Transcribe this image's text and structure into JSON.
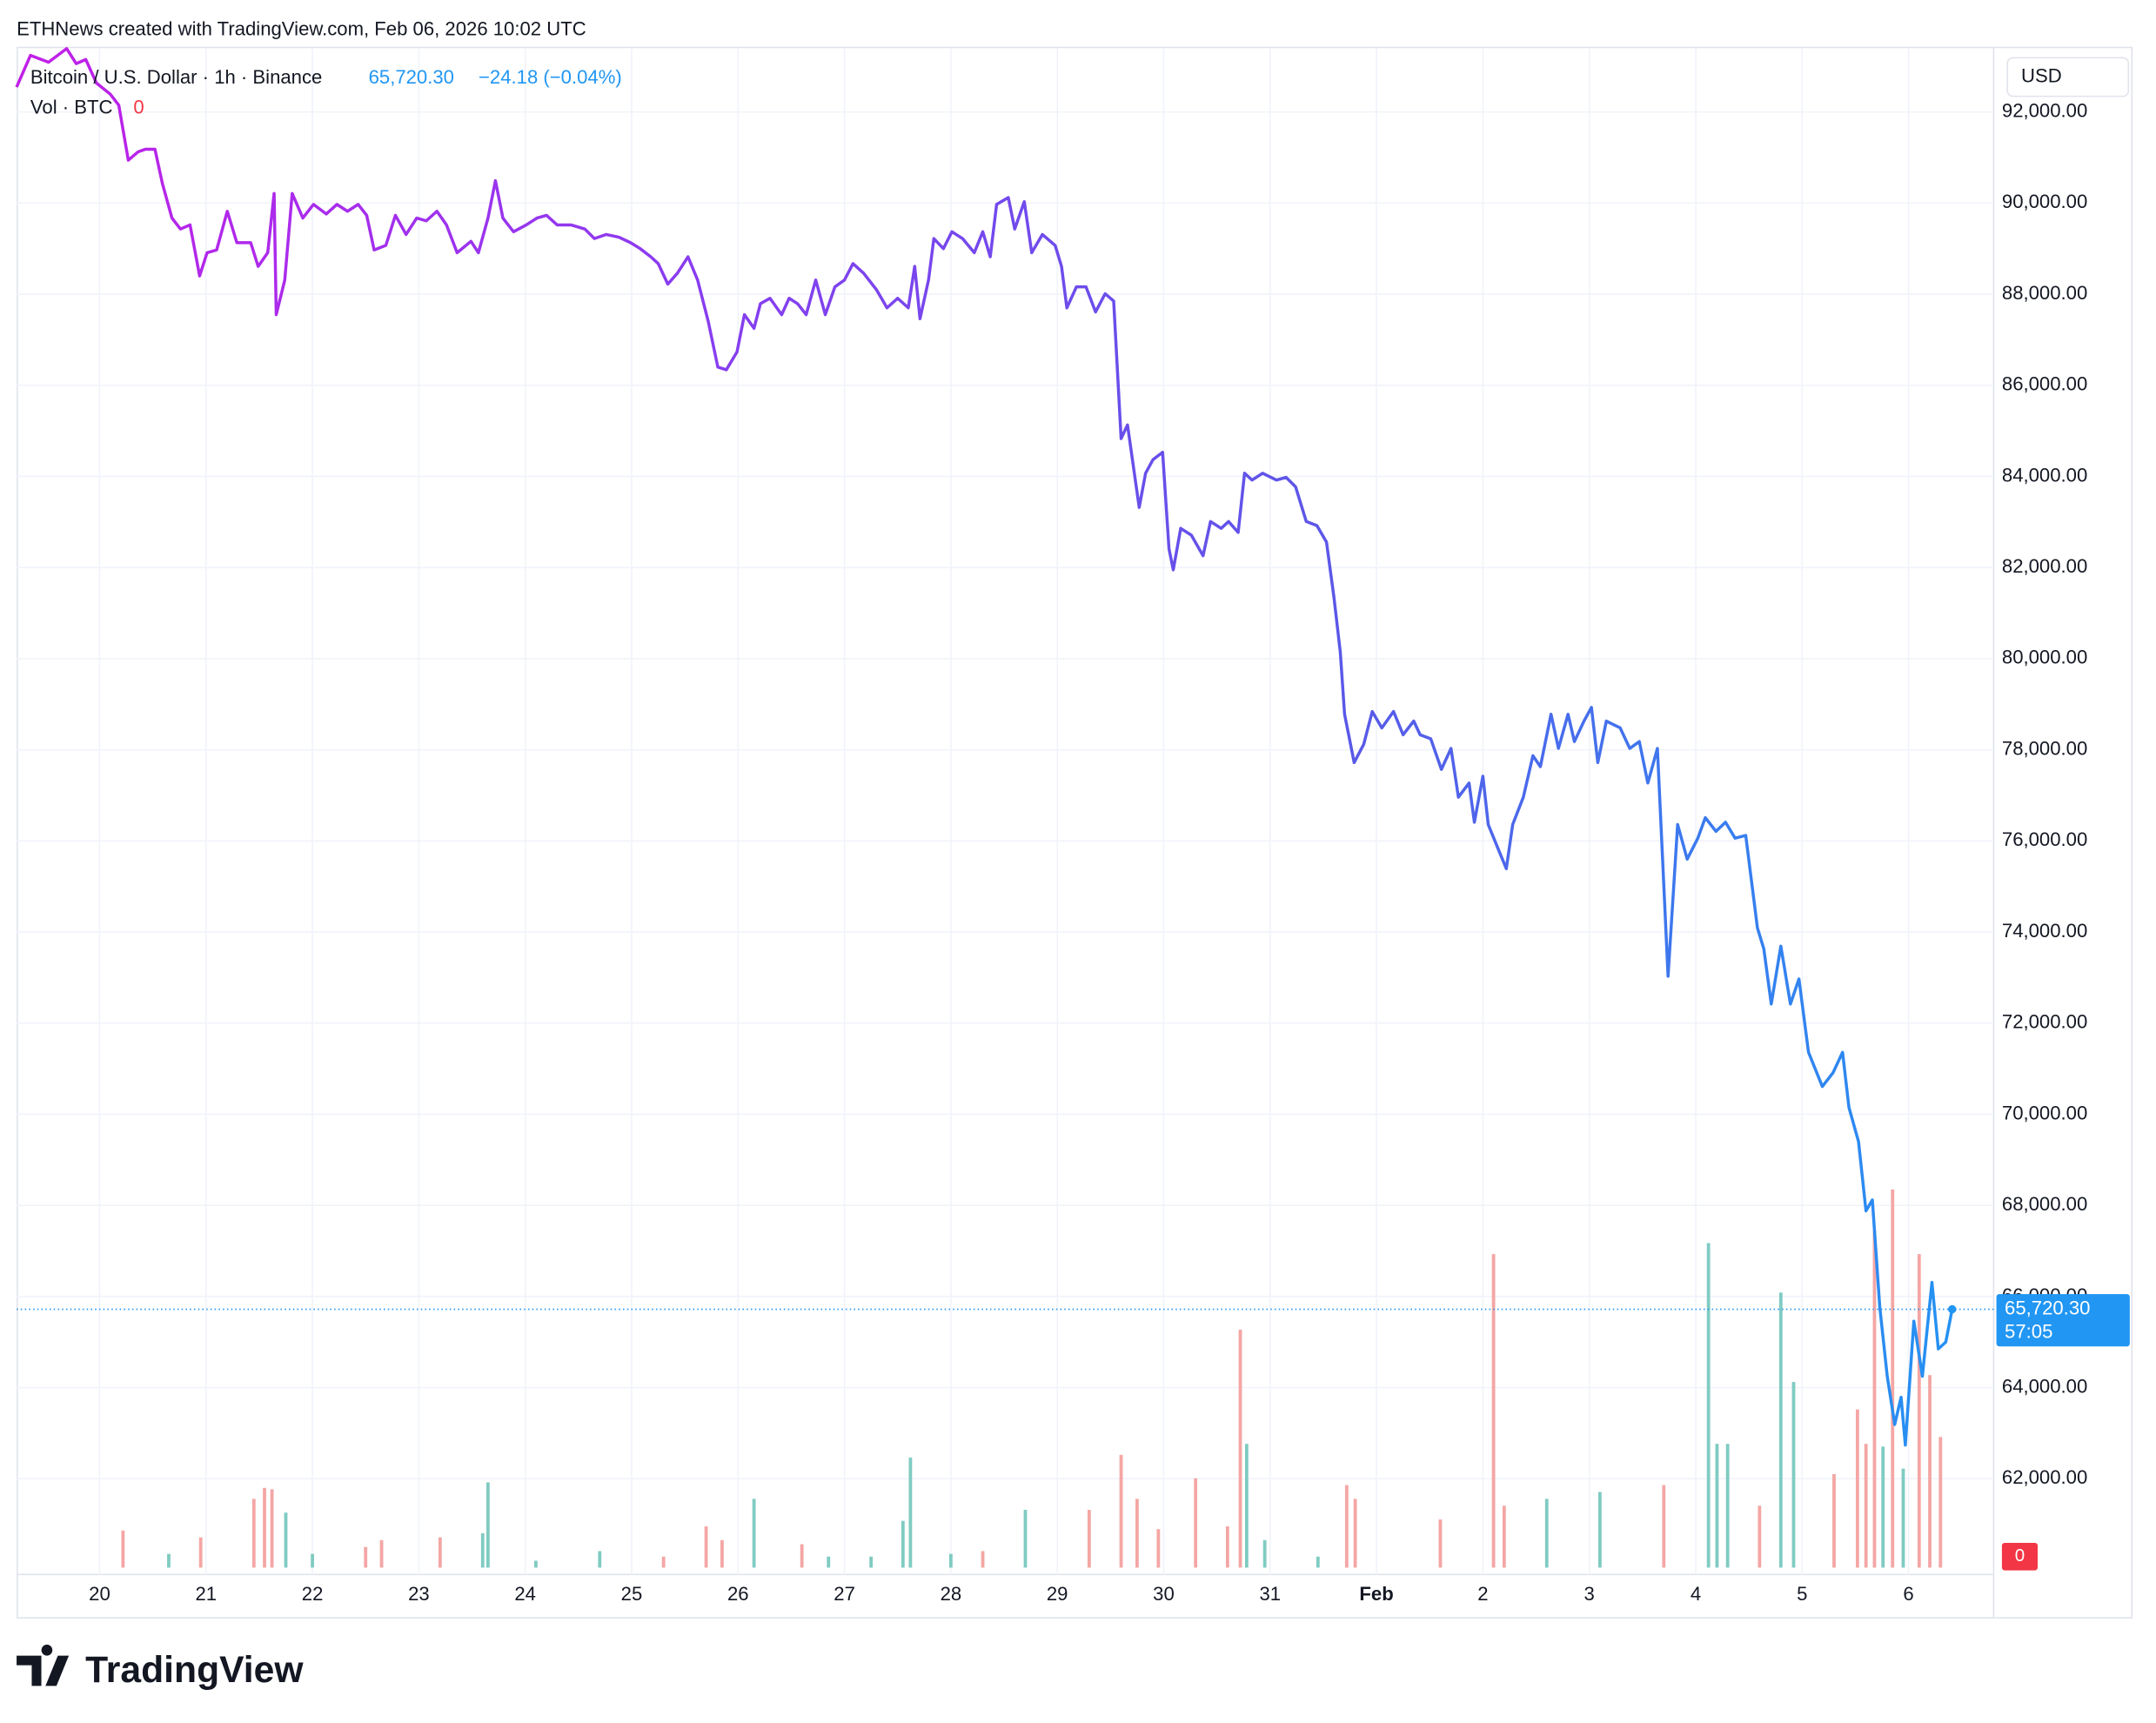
{
  "header": "ETHNews created with TradingView.com, Feb 06, 2026 10:02 UTC",
  "footer": "TradingView",
  "chart_data": {
    "type": "line",
    "title": "Bitcoin / U.S. Dollar · 1h · Binance",
    "price_label": "65,720.30",
    "change_label": "−24.18 (−0.04%)",
    "countdown": "57:05",
    "currency": "USD",
    "line_colors": [
      "#c21fe8",
      "#8a3cf0",
      "#5b57e8",
      "#2196f3"
    ],
    "grid": true,
    "xlim": [
      19.22,
      37.8
    ],
    "xticks": [
      20,
      21,
      22,
      23,
      24,
      25,
      26,
      27,
      28,
      29,
      30,
      31,
      {
        "value": 32,
        "label": "Feb"
      },
      {
        "value": 33,
        "label": "2"
      },
      {
        "value": 34,
        "label": "3"
      },
      {
        "value": 35,
        "label": "4"
      },
      {
        "value": 36,
        "label": "5"
      },
      {
        "value": 37,
        "label": "6"
      }
    ],
    "ylim": [
      60050,
      93400
    ],
    "yticks": [
      {
        "value": 62000,
        "label": "62,000.00"
      },
      {
        "value": 64000,
        "label": "64,000.00"
      },
      {
        "value": 66000,
        "label": "66,000.00"
      },
      {
        "value": 68000,
        "label": "68,000.00"
      },
      {
        "value": 70000,
        "label": "70,000.00"
      },
      {
        "value": 72000,
        "label": "72,000.00"
      },
      {
        "value": 74000,
        "label": "74,000.00"
      },
      {
        "value": 76000,
        "label": "76,000.00"
      },
      {
        "value": 78000,
        "label": "78,000.00"
      },
      {
        "value": 80000,
        "label": "80,000.00"
      },
      {
        "value": 82000,
        "label": "82,000.00"
      },
      {
        "value": 84000,
        "label": "84,000.00"
      },
      {
        "value": 86000,
        "label": "86,000.00"
      },
      {
        "value": 88000,
        "label": "88,000.00"
      },
      {
        "value": 90000,
        "label": "90,000.00"
      },
      {
        "value": 92000,
        "label": "92,000.00"
      }
    ],
    "x": [
      19.22,
      19.35,
      19.52,
      19.69,
      19.78,
      19.87,
      19.97,
      20.1,
      20.18,
      20.27,
      20.36,
      20.43,
      20.52,
      20.59,
      20.68,
      20.76,
      20.85,
      20.94,
      21.01,
      21.1,
      21.2,
      21.29,
      21.42,
      21.49,
      21.58,
      21.64,
      21.66,
      21.74,
      21.81,
      21.91,
      22.01,
      22.13,
      22.23,
      22.33,
      22.43,
      22.51,
      22.58,
      22.69,
      22.78,
      22.88,
      22.98,
      23.07,
      23.17,
      23.26,
      23.36,
      23.49,
      23.56,
      23.65,
      23.72,
      23.79,
      23.89,
      24.01,
      24.11,
      24.2,
      24.3,
      24.43,
      24.56,
      24.65,
      24.76,
      24.88,
      24.99,
      25.08,
      25.18,
      25.25,
      25.34,
      25.43,
      25.53,
      25.62,
      25.72,
      25.81,
      25.89,
      25.99,
      26.06,
      26.15,
      26.21,
      26.3,
      26.41,
      26.48,
      26.56,
      26.64,
      26.73,
      26.82,
      26.91,
      27.0,
      27.08,
      27.18,
      27.3,
      27.4,
      27.5,
      27.6,
      27.66,
      27.71,
      27.79,
      27.84,
      27.93,
      28.01,
      28.11,
      28.22,
      28.3,
      28.37,
      28.43,
      28.54,
      28.6,
      28.69,
      28.76,
      28.86,
      28.98,
      29.04,
      29.09,
      29.18,
      29.27,
      29.36,
      29.45,
      29.53,
      29.6,
      29.66,
      29.77,
      29.83,
      29.9,
      29.99,
      30.05,
      30.09,
      30.16,
      30.26,
      30.37,
      30.44,
      30.54,
      30.61,
      30.7,
      30.76,
      30.83,
      30.93,
      31.06,
      31.15,
      31.24,
      31.34,
      31.44,
      31.53,
      31.6,
      31.66,
      31.7,
      31.79,
      31.88,
      31.96,
      32.05,
      32.16,
      32.25,
      32.35,
      32.41,
      32.51,
      32.61,
      32.7,
      32.77,
      32.87,
      32.92,
      33.0,
      33.05,
      33.13,
      33.22,
      33.28,
      33.38,
      33.47,
      33.54,
      33.64,
      33.71,
      33.8,
      33.86,
      33.95,
      34.02,
      34.08,
      34.16,
      34.29,
      34.38,
      34.47,
      34.55,
      34.64,
      34.74,
      34.83,
      34.92,
      35.02,
      35.09,
      35.19,
      35.28,
      35.37,
      35.47,
      35.58,
      35.64,
      35.71,
      35.8,
      35.89,
      35.97,
      36.06,
      36.19,
      36.29,
      36.38,
      36.44,
      36.53,
      36.6,
      36.66,
      36.73,
      36.8,
      36.87,
      36.93,
      36.97,
      37.05,
      37.13,
      37.22,
      37.28,
      37.35,
      37.41
    ],
    "values": [
      92545,
      93240,
      93090,
      93390,
      93060,
      93150,
      92635,
      92390,
      92150,
      90940,
      91120,
      91180,
      91180,
      90430,
      89670,
      89430,
      89520,
      88400,
      88910,
      88970,
      89820,
      89130,
      89130,
      88610,
      88910,
      90210,
      87550,
      88310,
      90210,
      89670,
      89970,
      89760,
      89970,
      89820,
      89970,
      89730,
      88970,
      89070,
      89730,
      89310,
      89670,
      89610,
      89820,
      89520,
      88910,
      89160,
      88910,
      89670,
      90490,
      89670,
      89370,
      89520,
      89670,
      89730,
      89520,
      89520,
      89430,
      89220,
      89310,
      89250,
      89130,
      89000,
      88820,
      88670,
      88220,
      88460,
      88820,
      88310,
      87400,
      86400,
      86340,
      86730,
      87550,
      87250,
      87790,
      87910,
      87550,
      87910,
      87790,
      87550,
      88310,
      87550,
      88160,
      88310,
      88670,
      88460,
      88100,
      87700,
      87910,
      87700,
      88610,
      87460,
      88310,
      89220,
      89000,
      89370,
      89220,
      88910,
      89370,
      88820,
      89970,
      90120,
      89430,
      90030,
      88910,
      89310,
      89070,
      88610,
      87700,
      88160,
      88160,
      87610,
      88010,
      87850,
      84830,
      85130,
      83320,
      84070,
      84370,
      84530,
      82410,
      81950,
      82860,
      82710,
      82260,
      83010,
      82860,
      83010,
      82770,
      84070,
      83920,
      84070,
      83920,
      83980,
      83770,
      83010,
      82920,
      82560,
      81350,
      80140,
      78780,
      77720,
      78120,
      78840,
      78480,
      78840,
      78330,
      78630,
      78330,
      78240,
      77570,
      78030,
      76960,
      77270,
      76410,
      77420,
      76360,
      75900,
      75390,
      76360,
      76960,
      77870,
      77630,
      78780,
      78030,
      78780,
      78180,
      78630,
      78930,
      77720,
      78630,
      78480,
      78030,
      78180,
      77270,
      78030,
      73030,
      76360,
      75600,
      76060,
      76510,
      76210,
      76410,
      76060,
      76120,
      74090,
      73630,
      72420,
      73690,
      72420,
      72970,
      71360,
      70610,
      70910,
      71360,
      70150,
      69400,
      67880,
      68120,
      65760,
      64250,
      63190,
      63790,
      62740,
      65460,
      64250,
      66310,
      64850,
      65000,
      65720.3
    ],
    "volume": {
      "name": "Vol · BTC",
      "value_label": "0",
      "x": [
        20.22,
        20.65,
        20.95,
        21.45,
        21.55,
        21.62,
        21.75,
        22.0,
        22.5,
        22.65,
        23.2,
        23.6,
        23.65,
        24.1,
        24.7,
        25.3,
        25.7,
        25.85,
        26.15,
        26.6,
        26.85,
        27.25,
        27.55,
        27.62,
        28.0,
        28.3,
        28.7,
        29.3,
        29.6,
        29.75,
        29.95,
        30.3,
        30.6,
        30.72,
        30.78,
        30.95,
        31.45,
        31.72,
        31.8,
        32.6,
        33.1,
        33.2,
        33.6,
        34.1,
        34.7,
        35.12,
        35.2,
        35.3,
        35.6,
        35.8,
        35.92,
        36.3,
        36.52,
        36.6,
        36.68,
        36.76,
        36.85,
        36.95,
        37.1,
        37.2,
        37.3
      ],
      "values": [
        1080,
        400,
        880,
        2000,
        2320,
        2280,
        1600,
        400,
        600,
        800,
        880,
        1000,
        2480,
        200,
        480,
        320,
        1200,
        800,
        2000,
        680,
        320,
        320,
        1360,
        3200,
        400,
        480,
        1680,
        1680,
        3280,
        2000,
        1120,
        2600,
        1200,
        6920,
        3600,
        800,
        320,
        2400,
        2000,
        1400,
        9120,
        1800,
        2000,
        2200,
        2400,
        9440,
        3600,
        3600,
        1800,
        8000,
        5400,
        2720,
        4600,
        3600,
        9800,
        3520,
        11000,
        2880,
        9120,
        5600,
        3800
      ],
      "colors": [
        "#f4a6a4",
        "#7fcbc2",
        "#f4a6a4",
        "#f4a6a4",
        "#f4a6a4",
        "#f4a6a4",
        "#7fcbc2",
        "#7fcbc2",
        "#f4a6a4",
        "#f4a6a4",
        "#f4a6a4",
        "#7fcbc2",
        "#7fcbc2",
        "#7fcbc2",
        "#7fcbc2",
        "#f4a6a4",
        "#f4a6a4",
        "#f4a6a4",
        "#7fcbc2",
        "#f4a6a4",
        "#7fcbc2",
        "#7fcbc2",
        "#7fcbc2",
        "#7fcbc2",
        "#7fcbc2",
        "#f4a6a4",
        "#7fcbc2",
        "#f4a6a4",
        "#f4a6a4",
        "#f4a6a4",
        "#f4a6a4",
        "#f4a6a4",
        "#f4a6a4",
        "#f4a6a4",
        "#7fcbc2",
        "#7fcbc2",
        "#7fcbc2",
        "#f4a6a4",
        "#f4a6a4",
        "#f4a6a4",
        "#f4a6a4",
        "#f4a6a4",
        "#7fcbc2",
        "#7fcbc2",
        "#f4a6a4",
        "#7fcbc2",
        "#7fcbc2",
        "#7fcbc2",
        "#f4a6a4",
        "#7fcbc2",
        "#7fcbc2",
        "#f4a6a4",
        "#f4a6a4",
        "#f4a6a4",
        "#f4a6a4",
        "#7fcbc2",
        "#f4a6a4",
        "#7fcbc2",
        "#f4a6a4",
        "#f4a6a4",
        "#f4a6a4"
      ]
    }
  }
}
